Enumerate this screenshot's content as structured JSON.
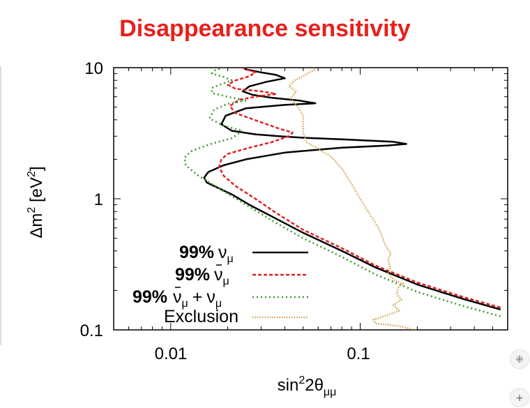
{
  "page": {
    "title": "Disappearance sensitivity"
  },
  "controls": {
    "collapse_icon": "⁜",
    "expand_icon": "+"
  },
  "chart_data": {
    "type": "line",
    "title": "Disappearance sensitivity",
    "xscale": "log",
    "yscale": "log",
    "xlim": [
      0.005,
      0.6
    ],
    "ylim": [
      0.1,
      10
    ],
    "xticks": [
      "0.01",
      "0.1"
    ],
    "yticks": [
      "10",
      "1",
      "0.1"
    ],
    "xlabel": {
      "pre": "sin",
      "sup": "2",
      "mid": "2θ",
      "sub": "μμ"
    },
    "ylabel": {
      "pre": "Δm",
      "sup1": "2",
      "mid": " [eV",
      "sup2": "2",
      "post": "]"
    },
    "legend_position": "lower-left",
    "series": [
      {
        "legend": {
          "pct": "99%",
          "sym": "ν",
          "sub": "μ"
        },
        "color": "#000000",
        "dash": "",
        "width": 2.5,
        "points": [
          [
            0.55,
            0.143
          ],
          [
            0.35,
            0.172
          ],
          [
            0.2,
            0.222
          ],
          [
            0.12,
            0.3
          ],
          [
            0.08,
            0.4
          ],
          [
            0.05,
            0.55
          ],
          [
            0.035,
            0.72
          ],
          [
            0.026,
            0.9
          ],
          [
            0.021,
            1.08
          ],
          [
            0.018,
            1.2
          ],
          [
            0.0155,
            1.33
          ],
          [
            0.015,
            1.45
          ],
          [
            0.0158,
            1.6
          ],
          [
            0.019,
            1.8
          ],
          [
            0.025,
            2.0
          ],
          [
            0.04,
            2.25
          ],
          [
            0.08,
            2.45
          ],
          [
            0.14,
            2.55
          ],
          [
            0.175,
            2.62
          ],
          [
            0.15,
            2.72
          ],
          [
            0.09,
            2.82
          ],
          [
            0.05,
            2.92
          ],
          [
            0.037,
            3.0
          ],
          [
            0.028,
            3.1
          ],
          [
            0.021,
            3.3
          ],
          [
            0.0185,
            3.7
          ],
          [
            0.0195,
            4.3
          ],
          [
            0.025,
            4.9
          ],
          [
            0.04,
            5.2
          ],
          [
            0.058,
            5.35
          ],
          [
            0.048,
            5.6
          ],
          [
            0.034,
            5.9
          ],
          [
            0.027,
            6.2
          ],
          [
            0.024,
            6.6
          ],
          [
            0.026,
            7.2
          ],
          [
            0.032,
            7.8
          ],
          [
            0.04,
            8.3
          ],
          [
            0.036,
            8.8
          ],
          [
            0.03,
            9.2
          ],
          [
            0.025,
            9.7
          ],
          [
            0.024,
            10
          ]
        ]
      },
      {
        "legend": {
          "pct": "99%",
          "sym": "ν",
          "bar": true,
          "sub": "μ"
        },
        "color": "#e02020",
        "dash": "5,3",
        "width": 2.5,
        "points": [
          [
            0.55,
            0.148
          ],
          [
            0.35,
            0.178
          ],
          [
            0.2,
            0.23
          ],
          [
            0.12,
            0.31
          ],
          [
            0.08,
            0.42
          ],
          [
            0.05,
            0.58
          ],
          [
            0.036,
            0.78
          ],
          [
            0.028,
            1.0
          ],
          [
            0.022,
            1.25
          ],
          [
            0.019,
            1.5
          ],
          [
            0.018,
            1.75
          ],
          [
            0.0185,
            2.0
          ],
          [
            0.02,
            2.2
          ],
          [
            0.026,
            2.45
          ],
          [
            0.034,
            2.7
          ],
          [
            0.042,
            3.0
          ],
          [
            0.044,
            3.2
          ],
          [
            0.038,
            3.4
          ],
          [
            0.029,
            3.9
          ],
          [
            0.022,
            4.5
          ],
          [
            0.0205,
            5.1
          ],
          [
            0.023,
            5.7
          ],
          [
            0.03,
            6.1
          ],
          [
            0.036,
            6.3
          ],
          [
            0.03,
            6.6
          ],
          [
            0.022,
            6.9
          ],
          [
            0.02,
            7.4
          ],
          [
            0.022,
            8.0
          ],
          [
            0.026,
            8.6
          ],
          [
            0.028,
            9.2
          ],
          [
            0.025,
            9.7
          ],
          [
            0.024,
            10
          ]
        ]
      },
      {
        "legend": {
          "pct": "99%",
          "sym": "ν",
          "bar": true,
          "sub": "μ",
          "plus": "+",
          "sym2": "ν",
          "sub2": "μ"
        },
        "color": "#3a9a2a",
        "dash": "2,4",
        "width": 2.6,
        "points": [
          [
            0.55,
            0.127
          ],
          [
            0.35,
            0.152
          ],
          [
            0.2,
            0.195
          ],
          [
            0.12,
            0.265
          ],
          [
            0.08,
            0.36
          ],
          [
            0.05,
            0.5
          ],
          [
            0.035,
            0.67
          ],
          [
            0.025,
            0.9
          ],
          [
            0.018,
            1.2
          ],
          [
            0.014,
            1.5
          ],
          [
            0.012,
            1.8
          ],
          [
            0.0118,
            2.05
          ],
          [
            0.0128,
            2.3
          ],
          [
            0.016,
            2.6
          ],
          [
            0.021,
            2.9
          ],
          [
            0.024,
            3.3
          ],
          [
            0.019,
            3.6
          ],
          [
            0.016,
            4.1
          ],
          [
            0.017,
            4.8
          ],
          [
            0.02,
            5.3
          ],
          [
            0.025,
            5.6
          ],
          [
            0.02,
            6.0
          ],
          [
            0.0165,
            6.4
          ],
          [
            0.0165,
            7.0
          ],
          [
            0.019,
            7.6
          ],
          [
            0.021,
            8.0
          ],
          [
            0.019,
            8.5
          ],
          [
            0.0165,
            9.0
          ],
          [
            0.017,
            9.5
          ],
          [
            0.019,
            10
          ]
        ]
      },
      {
        "legend": {
          "text": "Exclusion"
        },
        "color": "#cfa64e",
        "dash": "1.5,2",
        "width": 2.6,
        "points": [
          [
            0.195,
            0.1
          ],
          [
            0.16,
            0.107
          ],
          [
            0.12,
            0.112
          ],
          [
            0.118,
            0.12
          ],
          [
            0.14,
            0.13
          ],
          [
            0.16,
            0.14
          ],
          [
            0.15,
            0.155
          ],
          [
            0.165,
            0.17
          ],
          [
            0.155,
            0.19
          ],
          [
            0.16,
            0.215
          ],
          [
            0.17,
            0.225
          ],
          [
            0.15,
            0.24
          ],
          [
            0.14,
            0.27
          ],
          [
            0.145,
            0.3
          ],
          [
            0.14,
            0.34
          ],
          [
            0.145,
            0.38
          ],
          [
            0.135,
            0.45
          ],
          [
            0.125,
            0.6
          ],
          [
            0.11,
            0.8
          ],
          [
            0.1,
            1.0
          ],
          [
            0.09,
            1.3
          ],
          [
            0.08,
            1.7
          ],
          [
            0.07,
            2.1
          ],
          [
            0.06,
            2.4
          ],
          [
            0.052,
            2.7
          ],
          [
            0.05,
            3.2
          ],
          [
            0.05,
            3.8
          ],
          [
            0.05,
            4.3
          ],
          [
            0.047,
            5.0
          ],
          [
            0.043,
            5.8
          ],
          [
            0.046,
            6.6
          ],
          [
            0.042,
            7.2
          ],
          [
            0.045,
            8.0
          ],
          [
            0.05,
            8.6
          ],
          [
            0.054,
            9.2
          ],
          [
            0.058,
            9.7
          ],
          [
            0.056,
            10
          ]
        ]
      }
    ]
  }
}
